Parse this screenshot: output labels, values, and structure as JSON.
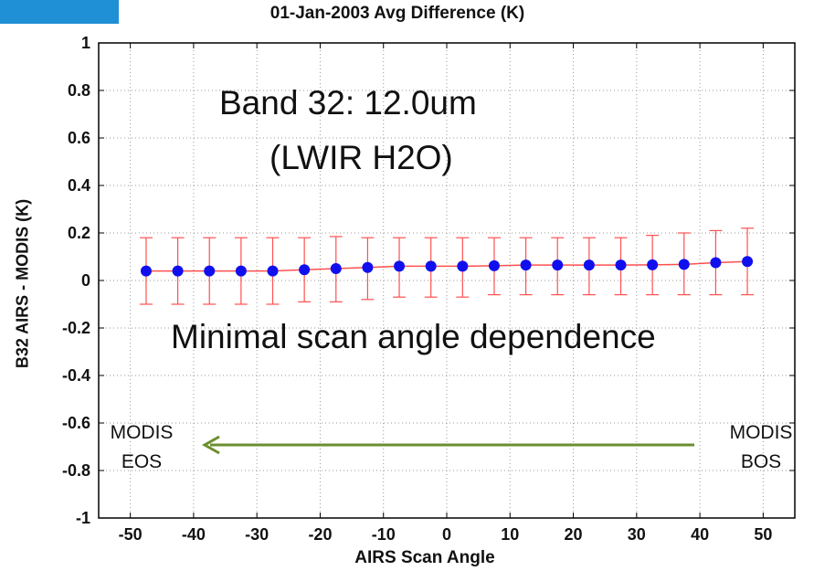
{
  "header": {
    "accent_color": "#1f8fd6"
  },
  "annotations": {
    "band_line1": "Band 32: 12.0um",
    "band_line2": "(LWIR H2O)",
    "minimal": "Minimal scan angle dependence",
    "modis_eos": [
      "MODIS",
      "EOS"
    ],
    "modis_bos": [
      "MODIS",
      "BOS"
    ],
    "arrow_color": "#6b8e2f",
    "arrow_direction": "left"
  },
  "chart_data": {
    "type": "line",
    "title": "01-Jan-2003 Avg Difference (K)",
    "xlabel": "AIRS Scan Angle",
    "ylabel": "B32 AIRS - MODIS (K)",
    "xlim": [
      -55,
      55
    ],
    "ylim": [
      -1,
      1
    ],
    "x_ticks": [
      -50,
      -40,
      -30,
      -20,
      -10,
      0,
      10,
      20,
      30,
      40,
      50
    ],
    "y_ticks": [
      1,
      0.8,
      0.6,
      0.4,
      0.2,
      0,
      -0.2,
      -0.4,
      -0.6,
      -0.8,
      -1
    ],
    "grid": true,
    "line_color": "#ff5050",
    "marker_color": "#1010ee",
    "series": [
      {
        "x": [
          -47.5,
          -42.5,
          -37.5,
          -32.5,
          -27.5,
          -22.5,
          -17.5,
          -12.5,
          -7.5,
          -2.5,
          2.5,
          7.5,
          12.5,
          17.5,
          22.5,
          27.5,
          32.5,
          37.5,
          42.5,
          47.5
        ],
        "y": [
          0.04,
          0.04,
          0.04,
          0.04,
          0.04,
          0.045,
          0.05,
          0.055,
          0.06,
          0.06,
          0.06,
          0.062,
          0.065,
          0.065,
          0.065,
          0.065,
          0.066,
          0.068,
          0.075,
          0.08
        ],
        "err_upper": [
          0.18,
          0.18,
          0.18,
          0.18,
          0.18,
          0.18,
          0.185,
          0.18,
          0.18,
          0.18,
          0.18,
          0.18,
          0.18,
          0.18,
          0.18,
          0.18,
          0.19,
          0.2,
          0.21,
          0.22
        ],
        "err_lower": [
          -0.1,
          -0.1,
          -0.1,
          -0.1,
          -0.1,
          -0.09,
          -0.09,
          -0.08,
          -0.07,
          -0.07,
          -0.07,
          -0.06,
          -0.06,
          -0.06,
          -0.06,
          -0.06,
          -0.06,
          -0.06,
          -0.06,
          -0.06
        ]
      }
    ]
  }
}
